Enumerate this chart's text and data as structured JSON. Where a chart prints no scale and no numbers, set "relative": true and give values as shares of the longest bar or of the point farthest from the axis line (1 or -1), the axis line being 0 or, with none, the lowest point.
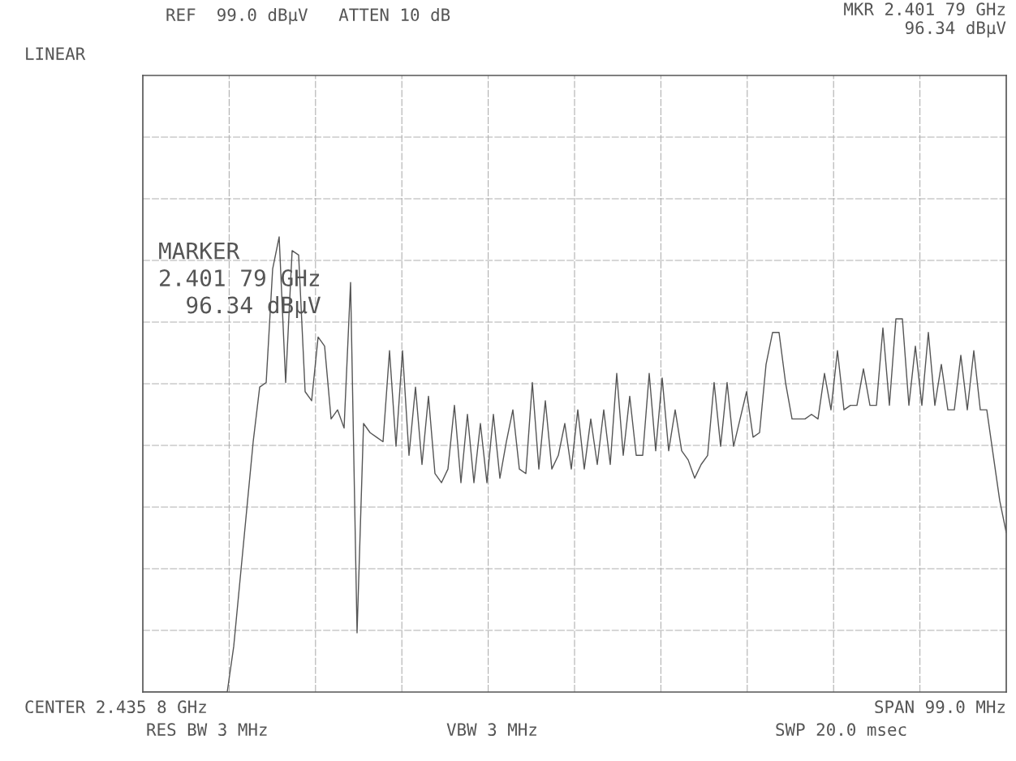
{
  "chart_data": {
    "type": "line",
    "relative": true,
    "grid": true,
    "legend": false,
    "tick_labels": false,
    "categories": [
      null,
      null,
      null,
      null,
      null,
      null,
      null,
      null,
      null,
      null,
      null,
      null,
      null,
      null,
      null,
      null,
      null,
      null,
      null,
      null,
      null,
      null,
      null,
      null,
      null,
      null,
      null,
      null,
      null,
      null,
      null,
      null,
      null,
      null,
      null,
      null,
      null,
      null,
      null,
      null,
      null,
      null,
      null,
      null,
      null,
      null,
      null,
      null,
      null,
      null,
      null,
      null,
      null,
      null,
      null,
      null,
      null,
      null,
      null,
      null,
      null,
      null,
      null,
      null,
      null,
      null,
      null,
      null,
      null,
      null,
      null,
      null,
      null,
      null,
      null,
      null,
      null,
      null,
      null,
      null,
      null,
      null,
      null,
      null,
      null,
      null,
      null,
      null,
      null,
      null,
      null,
      null,
      null,
      null,
      null,
      null,
      null,
      null,
      null,
      null,
      null,
      null,
      null,
      null,
      null,
      null,
      null,
      null,
      null,
      null,
      null,
      null,
      null,
      null,
      null,
      null,
      null,
      null,
      null,
      null,
      null,
      null,
      null,
      null,
      null,
      null,
      null,
      null,
      null,
      null,
      null,
      null,
      null,
      null
    ],
    "series": [
      {
        "color": "#555555",
        "values": [
          0,
          0,
          0,
          0,
          0,
          0,
          0,
          0,
          0,
          0,
          0,
          0,
          0,
          0,
          0.1,
          0.25,
          0.4,
          0.55,
          0.67,
          0.68,
          0.93,
          1.0,
          0.68,
          0.97,
          0.96,
          0.66,
          0.64,
          0.78,
          0.76,
          0.6,
          0.62,
          0.58,
          0.9,
          0.13,
          0.59,
          0.57,
          0.56,
          0.55,
          0.75,
          0.54,
          0.75,
          0.52,
          0.67,
          0.5,
          0.65,
          0.48,
          0.46,
          0.49,
          0.63,
          0.46,
          0.61,
          0.46,
          0.59,
          0.46,
          0.61,
          0.47,
          0.55,
          0.62,
          0.49,
          0.48,
          0.68,
          0.49,
          0.64,
          0.49,
          0.52,
          0.59,
          0.49,
          0.62,
          0.49,
          0.6,
          0.5,
          0.62,
          0.5,
          0.7,
          0.52,
          0.65,
          0.52,
          0.52,
          0.7,
          0.53,
          0.69,
          0.53,
          0.62,
          0.53,
          0.51,
          0.47,
          0.5,
          0.52,
          0.68,
          0.54,
          0.68,
          0.54,
          0.6,
          0.66,
          0.56,
          0.57,
          0.72,
          0.79,
          0.79,
          0.68,
          0.6,
          0.6,
          0.6,
          0.61,
          0.6,
          0.7,
          0.62,
          0.75,
          0.62,
          0.63,
          0.63,
          0.71,
          0.63,
          0.63,
          0.8,
          0.63,
          0.82,
          0.82,
          0.63,
          0.76,
          0.63,
          0.79,
          0.63,
          0.72,
          0.62,
          0.62,
          0.74,
          0.62,
          0.75,
          0.62,
          0.62,
          0.52,
          0.42,
          0.35
        ]
      }
    ],
    "annotations": [
      "REF  99.0 dBµV   ATTEN 10 dB",
      "MKR 2.401 79 GHz",
      "96.34 dBµV",
      "LINEAR",
      "MARKER\n2.401 79 GHz\n  96.34 dBµV",
      "CENTER 2.435 8 GHz",
      "SPAN 99.0 MHz",
      "RES BW 3 MHz",
      "VBW 3 MHz",
      "SWP 20.0 msec"
    ]
  }
}
